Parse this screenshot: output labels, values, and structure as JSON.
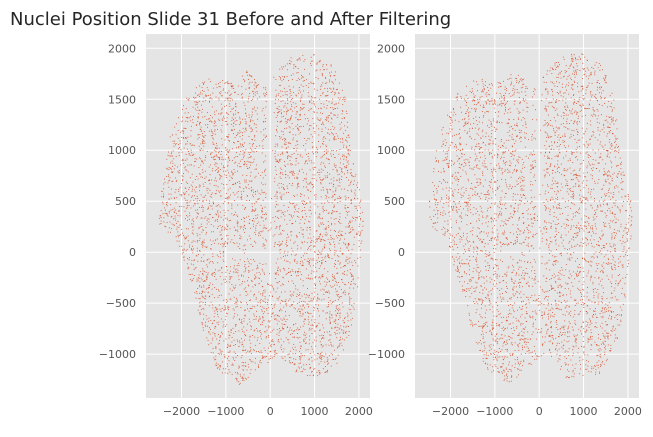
{
  "figure": {
    "title": "Nuclei Position Slide 31 Before and After Filtering"
  },
  "chart_data": [
    {
      "type": "scatter",
      "panel": "left",
      "title": "",
      "xlabel": "",
      "ylabel": "",
      "xlim": [
        -2800,
        2250
      ],
      "ylim": [
        -1430,
        2140
      ],
      "x_ticks": [
        -2000,
        -1000,
        0,
        1000,
        2000
      ],
      "x_tick_labels": [
        "−2000",
        "−1000",
        "0",
        "1000",
        "2000"
      ],
      "y_ticks": [
        -1000,
        -500,
        0,
        500,
        1000,
        1500,
        2000
      ],
      "y_tick_labels": [
        "−1000",
        "−500",
        "0",
        "500",
        "1000",
        "1500",
        "2000"
      ],
      "grid": true,
      "point_color": "#d9542f",
      "description_extent": {
        "x": [
          -2600,
          2100
        ],
        "y": [
          -1300,
          2000
        ]
      }
    },
    {
      "type": "scatter",
      "panel": "right",
      "title": "",
      "xlabel": "",
      "ylabel": "",
      "xlim": [
        -2800,
        2250
      ],
      "ylim": [
        -1430,
        2140
      ],
      "x_ticks": [
        -2000,
        -1000,
        0,
        1000,
        2000
      ],
      "x_tick_labels": [
        "−2000",
        "−1000",
        "0",
        "1000",
        "2000"
      ],
      "y_ticks": [
        -1000,
        -500,
        0,
        500,
        1000,
        1500,
        2000
      ],
      "y_tick_labels": [
        "−1000",
        "−500",
        "0",
        "500",
        "1000",
        "1500",
        "2000"
      ],
      "grid": true,
      "point_color": "#d9542f",
      "description_extent": {
        "x": [
          -2600,
          2100
        ],
        "y": [
          -1300,
          2000
        ]
      }
    }
  ]
}
